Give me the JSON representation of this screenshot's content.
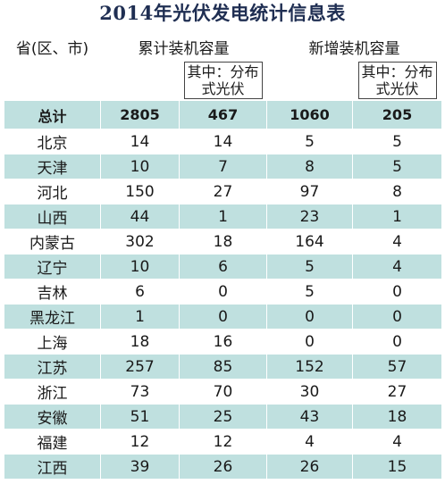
{
  "title": "2014年光伏发电统计信息表",
  "header": {
    "region": "省(区、市)",
    "cumulative": "累计装机容量",
    "new": "新增装机容量",
    "sub_cumulative": "其中：分布式光伏",
    "sub_new": "其中：分布式光伏"
  },
  "total": {
    "name": "总计",
    "values": [
      "2805",
      "467",
      "1060",
      "205"
    ]
  },
  "rows": [
    {
      "name": "北京",
      "values": [
        "14",
        "14",
        "5",
        "5"
      ]
    },
    {
      "name": "天津",
      "values": [
        "10",
        "7",
        "8",
        "5"
      ]
    },
    {
      "name": "河北",
      "values": [
        "150",
        "27",
        "97",
        "8"
      ]
    },
    {
      "name": "山西",
      "values": [
        "44",
        "1",
        "23",
        "1"
      ]
    },
    {
      "name": "内蒙古",
      "values": [
        "302",
        "18",
        "164",
        "4"
      ]
    },
    {
      "name": "辽宁",
      "values": [
        "10",
        "6",
        "5",
        "4"
      ]
    },
    {
      "name": "吉林",
      "values": [
        "6",
        "0",
        "5",
        "0"
      ]
    },
    {
      "name": "黑龙江",
      "values": [
        "1",
        "0",
        "0",
        "0"
      ]
    },
    {
      "name": "上海",
      "values": [
        "18",
        "16",
        "0",
        "0"
      ]
    },
    {
      "name": "江苏",
      "values": [
        "257",
        "85",
        "152",
        "57"
      ]
    },
    {
      "name": "浙江",
      "values": [
        "73",
        "70",
        "30",
        "27"
      ]
    },
    {
      "name": "安徽",
      "values": [
        "51",
        "25",
        "43",
        "18"
      ]
    },
    {
      "name": "福建",
      "values": [
        "12",
        "12",
        "4",
        "4"
      ]
    },
    {
      "name": "江西",
      "values": [
        "39",
        "26",
        "26",
        "15"
      ]
    }
  ],
  "colors": {
    "title": "#1f2e52",
    "row_shade": "#bfe0df"
  }
}
